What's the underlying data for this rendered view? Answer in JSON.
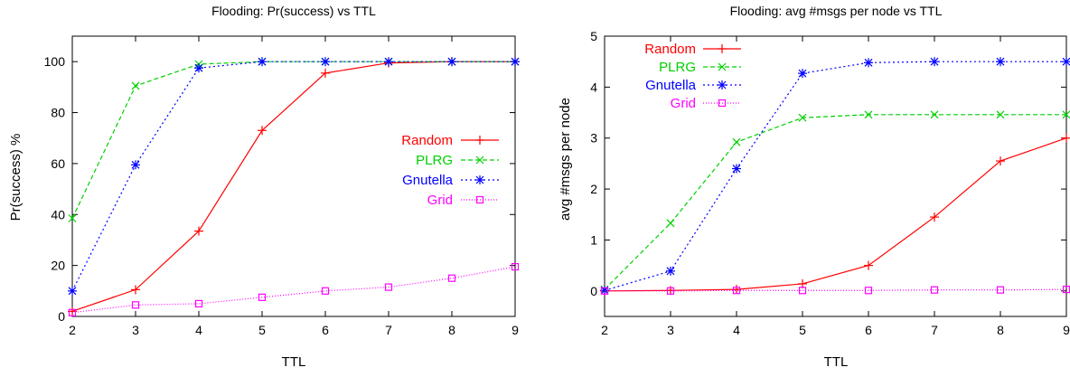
{
  "charts": [
    {
      "type": "line",
      "title": "Flooding: Pr(success) vs TTL",
      "xlabel": "TTL",
      "ylabel": "Pr(success) %",
      "x": [
        2,
        3,
        4,
        5,
        6,
        7,
        8,
        9
      ],
      "xlim": [
        2,
        9
      ],
      "ylim": [
        0,
        110
      ],
      "xticks": [
        2,
        3,
        4,
        5,
        6,
        7,
        8,
        9
      ],
      "yticks": [
        0,
        20,
        40,
        60,
        80,
        100
      ],
      "grid": false,
      "legend_position": "right",
      "series": [
        {
          "name": "Random",
          "color": "#ff0000",
          "marker": "plus",
          "dash": "none",
          "values": [
            2,
            10.5,
            33.5,
            73,
            95.5,
            99.5,
            100,
            100
          ]
        },
        {
          "name": "PLRG",
          "color": "#00d000",
          "marker": "x",
          "dash": "dashed",
          "values": [
            38.5,
            90.5,
            99,
            100,
            100,
            100,
            100,
            100
          ]
        },
        {
          "name": "Gnutella",
          "color": "#0000ff",
          "marker": "star",
          "dash": "dotted",
          "values": [
            10,
            59.5,
            97.5,
            100,
            100,
            100,
            100,
            100
          ]
        },
        {
          "name": "Grid",
          "color": "#ff00ff",
          "marker": "square",
          "dash": "fine",
          "values": [
            1.5,
            4.5,
            5,
            7.5,
            10,
            11.5,
            15,
            19.5
          ]
        }
      ]
    },
    {
      "type": "line",
      "title": "Flooding: avg #msgs per node vs TTL",
      "xlabel": "TTL",
      "ylabel": "avg #msgs per node",
      "x": [
        2,
        3,
        4,
        5,
        6,
        7,
        8,
        9
      ],
      "xlim": [
        2,
        9
      ],
      "ylim": [
        -0.5,
        5
      ],
      "xticks": [
        2,
        3,
        4,
        5,
        6,
        7,
        8,
        9
      ],
      "yticks": [
        0,
        1,
        2,
        3,
        4,
        5
      ],
      "grid": false,
      "legend_position": "top-left",
      "series": [
        {
          "name": "Random",
          "color": "#ff0000",
          "marker": "plus",
          "dash": "none",
          "values": [
            0,
            0.01,
            0.03,
            0.14,
            0.5,
            1.45,
            2.55,
            3.0
          ]
        },
        {
          "name": "PLRG",
          "color": "#00d000",
          "marker": "x",
          "dash": "dashed",
          "values": [
            0.03,
            1.33,
            2.92,
            3.4,
            3.46,
            3.46,
            3.46,
            3.46
          ]
        },
        {
          "name": "Gnutella",
          "color": "#0000ff",
          "marker": "star",
          "dash": "dotted",
          "values": [
            0.01,
            0.39,
            2.4,
            4.27,
            4.48,
            4.5,
            4.5,
            4.5
          ]
        },
        {
          "name": "Grid",
          "color": "#ff00ff",
          "marker": "square",
          "dash": "fine",
          "values": [
            0,
            0,
            0.01,
            0.01,
            0.01,
            0.02,
            0.02,
            0.03
          ]
        }
      ]
    }
  ]
}
